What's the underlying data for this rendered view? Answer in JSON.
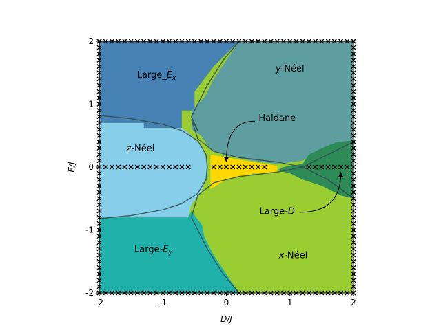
{
  "chart_data": {
    "type": "heatmap",
    "title": "",
    "xlabel": "D/J",
    "ylabel": "E/J",
    "xlim": [
      -2,
      2
    ],
    "ylim": [
      -2,
      2
    ],
    "xticks": [
      "-2",
      "-1",
      "0",
      "1",
      "2"
    ],
    "yticks": [
      "-2",
      "-1",
      "0",
      "1",
      "2"
    ],
    "grid": false,
    "phases": [
      {
        "name": "Large-Ex",
        "color": "#4682b4"
      },
      {
        "name": "y-Néel",
        "color": "#5f9ea0"
      },
      {
        "name": "z-Néel",
        "color": "#87ceeb"
      },
      {
        "name": "Haldane",
        "color": "#ffd700"
      },
      {
        "name": "Large-D",
        "color": "#2e8b57"
      },
      {
        "name": "Large-Ey",
        "color": "#20b2aa"
      },
      {
        "name": "x-Néel",
        "color": "#9acd32"
      }
    ],
    "regions": [
      {
        "phase": "Large-Ex",
        "polygon": [
          [
            -2,
            0.7
          ],
          [
            -1.3,
            0.7
          ],
          [
            -1.3,
            0.62
          ],
          [
            -0.7,
            0.62
          ],
          [
            -0.7,
            0.9
          ],
          [
            -0.5,
            0.9
          ],
          [
            -0.5,
            1.2
          ],
          [
            -0.2,
            1.6
          ],
          [
            0.2,
            2.0
          ],
          [
            -2,
            2.0
          ]
        ]
      },
      {
        "phase": "y-Néel",
        "polygon": [
          [
            0.2,
            2.0
          ],
          [
            2,
            2.0
          ],
          [
            2,
            0.4
          ],
          [
            1.8,
            0.4
          ],
          [
            1.6,
            0.3
          ],
          [
            1.4,
            0.2
          ],
          [
            1.2,
            0.1
          ],
          [
            0.8,
            0.05
          ],
          [
            0.4,
            0.1
          ],
          [
            0,
            0.18
          ],
          [
            -0.25,
            0.28
          ],
          [
            -0.4,
            0.5
          ],
          [
            -0.55,
            0.6
          ],
          [
            -0.55,
            0.9
          ],
          [
            -0.35,
            1.1
          ],
          [
            -0.2,
            1.4
          ],
          [
            0.0,
            1.7
          ]
        ]
      },
      {
        "phase": "z-Néel",
        "polygon": [
          [
            -2,
            0.7
          ],
          [
            -1.3,
            0.7
          ],
          [
            -1.3,
            0.62
          ],
          [
            -0.7,
            0.62
          ],
          [
            -0.6,
            0.55
          ],
          [
            -0.4,
            0.35
          ],
          [
            -0.3,
            0.1
          ],
          [
            -0.3,
            -0.15
          ],
          [
            -0.4,
            -0.4
          ],
          [
            -0.55,
            -0.6
          ],
          [
            -0.6,
            -0.8
          ],
          [
            -2,
            -0.8
          ]
        ]
      },
      {
        "phase": "Haldane",
        "polygon": [
          [
            -0.25,
            0.2
          ],
          [
            0,
            0.15
          ],
          [
            0.3,
            0.1
          ],
          [
            0.8,
            0.02
          ],
          [
            0.8,
            -0.1
          ],
          [
            0.4,
            -0.1
          ],
          [
            0.3,
            -0.18
          ],
          [
            0.0,
            -0.2
          ],
          [
            -0.1,
            -0.3
          ],
          [
            -0.25,
            -0.35
          ]
        ]
      },
      {
        "phase": "Large-D",
        "polygon": [
          [
            2,
            0.42
          ],
          [
            1.75,
            0.4
          ],
          [
            1.5,
            0.3
          ],
          [
            1.3,
            0.2
          ],
          [
            1.2,
            0.05
          ],
          [
            0.9,
            0.0
          ],
          [
            0.8,
            -0.05
          ],
          [
            1.0,
            -0.1
          ],
          [
            1.2,
            -0.2
          ],
          [
            1.5,
            -0.3
          ],
          [
            1.8,
            -0.45
          ],
          [
            2,
            -0.55
          ]
        ]
      },
      {
        "phase": "Large-Ey",
        "polygon": [
          [
            -2,
            -0.8
          ],
          [
            -0.6,
            -0.8
          ],
          [
            -0.55,
            -0.7
          ],
          [
            -0.4,
            -0.8
          ],
          [
            -0.35,
            -1.1
          ],
          [
            -0.2,
            -1.4
          ],
          [
            0,
            -1.7
          ],
          [
            0.2,
            -2.0
          ],
          [
            -2,
            -2.0
          ]
        ]
      },
      {
        "phase": "x-Néel",
        "polygon": [
          [
            0.2,
            -2.0
          ],
          [
            2,
            -2.0
          ],
          [
            2,
            -0.5
          ],
          [
            1.8,
            -0.45
          ],
          [
            1.5,
            -0.3
          ],
          [
            1.2,
            -0.2
          ],
          [
            1.0,
            -0.15
          ],
          [
            0.5,
            -0.1
          ],
          [
            0,
            -0.2
          ],
          [
            -0.25,
            -0.35
          ],
          [
            -0.4,
            -0.6
          ],
          [
            -0.55,
            -0.7
          ],
          [
            -0.4,
            -0.9
          ],
          [
            -0.3,
            -1.1
          ],
          [
            -0.15,
            -1.4
          ],
          [
            0,
            -1.7
          ]
        ]
      }
    ],
    "boundaries": [
      [
        [
          -2,
          0.82
        ],
        [
          -1.5,
          0.77
        ],
        [
          -1.0,
          0.68
        ],
        [
          -0.7,
          0.58
        ],
        [
          -0.45,
          0.42
        ],
        [
          -0.32,
          0.2
        ],
        [
          -0.3,
          0
        ],
        [
          -0.32,
          -0.2
        ],
        [
          -0.45,
          -0.42
        ],
        [
          -0.7,
          -0.58
        ],
        [
          -1.0,
          -0.68
        ],
        [
          -1.5,
          -0.77
        ],
        [
          -2,
          -0.82
        ]
      ],
      [
        [
          0.2,
          2.0
        ],
        [
          -0.05,
          1.7
        ],
        [
          -0.3,
          1.3
        ],
        [
          -0.55,
          0.8
        ],
        [
          -0.45,
          0.58
        ]
      ],
      [
        [
          -0.45,
          0.58
        ],
        [
          -0.55,
          0.75
        ]
      ],
      [
        [
          -0.55,
          0.75
        ],
        [
          -0.45,
          0.45
        ],
        [
          -0.2,
          0.25
        ],
        [
          0.2,
          0.15
        ],
        [
          0.8,
          0.08
        ],
        [
          1.2,
          0.0
        ],
        [
          1.6,
          -0.2
        ],
        [
          2,
          -0.5
        ]
      ],
      [
        [
          0.2,
          -2.0
        ],
        [
          -0.05,
          -1.7
        ],
        [
          -0.3,
          -1.3
        ],
        [
          -0.55,
          -0.8
        ],
        [
          -0.45,
          -0.45
        ],
        [
          -0.2,
          -0.25
        ],
        [
          0.2,
          -0.15
        ],
        [
          0.8,
          -0.08
        ],
        [
          1.2,
          0.0
        ],
        [
          1.6,
          0.2
        ],
        [
          2,
          0.4
        ]
      ]
    ],
    "markers": {
      "symbol": "x",
      "points_on_D_axis": [
        -1.9,
        -1.8,
        -1.7,
        -1.6,
        -1.5,
        -1.4,
        -1.3,
        -1.2,
        -1.1,
        -1.0,
        -0.9,
        -0.8,
        -0.7,
        -0.6,
        -0.2,
        -0.1,
        0.0,
        0.1,
        0.2,
        0.3,
        0.4,
        0.5,
        0.6,
        1.3,
        1.4,
        1.5,
        1.6,
        1.7,
        1.8,
        1.9
      ],
      "points_on_border": true
    },
    "annotations": [
      {
        "text": "Large_",
        "sub": "x",
        "var": "E",
        "x": -1.1,
        "y": 1.42
      },
      {
        "text": "y",
        "suffix": "-Néel",
        "x": 1.0,
        "y": 1.52
      },
      {
        "text": "z",
        "suffix": "-Néel",
        "x": -1.35,
        "y": 0.25
      },
      {
        "text": "Haldane",
        "x": 0.8,
        "y": 0.73
      },
      {
        "text": "Large-",
        "var": "D",
        "x": 0.8,
        "y": -0.75
      },
      {
        "text": "Large-",
        "sub": "y",
        "var": "E",
        "x": -1.15,
        "y": -1.35
      },
      {
        "text": "x",
        "suffix": "-Néel",
        "x": 1.05,
        "y": -1.45
      }
    ],
    "arrows": [
      {
        "from": [
          0.45,
          0.73
        ],
        "to": [
          0.0,
          0.1
        ]
      },
      {
        "from": [
          1.15,
          -0.72
        ],
        "to": [
          1.8,
          -0.1
        ]
      }
    ]
  }
}
